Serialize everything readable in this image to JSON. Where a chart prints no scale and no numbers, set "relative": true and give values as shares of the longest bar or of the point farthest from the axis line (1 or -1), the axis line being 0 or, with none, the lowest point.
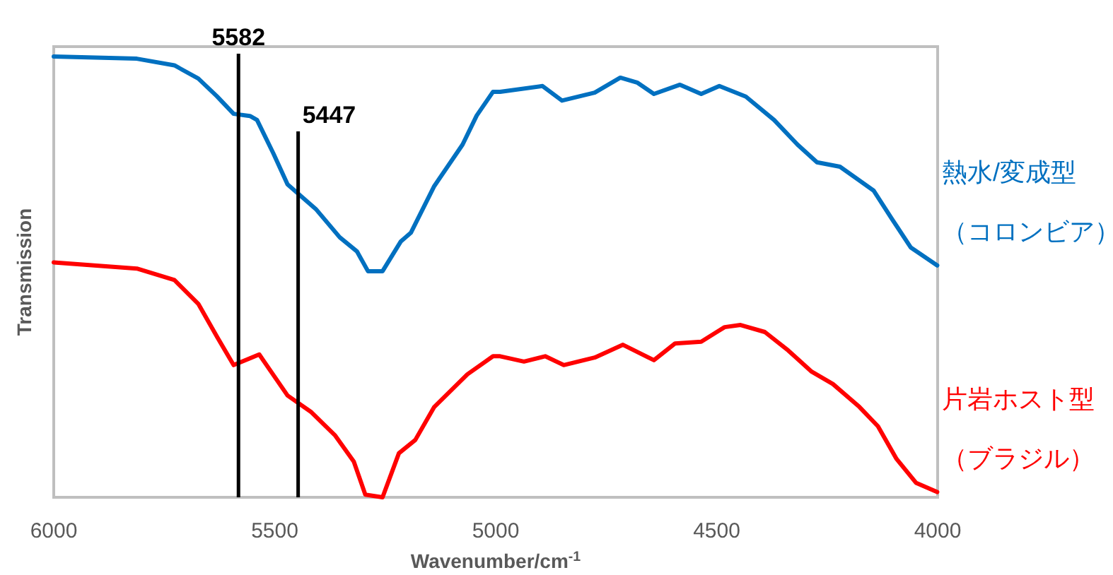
{
  "chart_data": {
    "type": "line",
    "xlabel": "Wavenumber/cm$^{-1}$",
    "ylabel": "Transmission",
    "relative": true,
    "xlim": [
      6000,
      4000
    ],
    "xticks": [
      6000,
      5500,
      5000,
      4500,
      4000
    ],
    "grid": false,
    "marker": "none",
    "line_style": "solid",
    "ref_lines": [
      {
        "axis": "x",
        "value": 5582,
        "label": "5582",
        "color": "#000000"
      },
      {
        "axis": "x",
        "value": 5447,
        "label": "5447",
        "color": "#000000"
      }
    ],
    "series": [
      {
        "name": "熱水/変成型（コロンビア）",
        "color": "#0070c0",
        "x": [
          6000,
          5812,
          5727,
          5673,
          5631,
          5593,
          5556,
          5540,
          5503,
          5471,
          5407,
          5353,
          5314,
          5289,
          5256,
          5215,
          5192,
          5139,
          5075,
          5043,
          5006,
          4990,
          4894,
          4850,
          4776,
          4718,
          4680,
          4642,
          4583,
          4535,
          4494,
          4434,
          4370,
          4317,
          4273,
          4221,
          4145,
          4103,
          4061,
          4001
        ],
        "values": [
          1.0,
          0.995,
          0.98,
          0.95,
          0.91,
          0.87,
          0.865,
          0.856,
          0.78,
          0.71,
          0.654,
          0.59,
          0.558,
          0.513,
          0.513,
          0.58,
          0.6,
          0.706,
          0.8,
          0.866,
          0.92,
          0.92,
          0.933,
          0.9,
          0.918,
          0.952,
          0.941,
          0.915,
          0.936,
          0.915,
          0.933,
          0.909,
          0.856,
          0.8,
          0.76,
          0.75,
          0.696,
          0.631,
          0.567,
          0.526
        ]
      },
      {
        "name": "片岩ホスト型（ブラジル）",
        "color": "#ff0000",
        "x": [
          6000,
          5812,
          5727,
          5673,
          5631,
          5593,
          5535,
          5471,
          5417,
          5363,
          5321,
          5295,
          5256,
          5219,
          5182,
          5139,
          5064,
          5006,
          4990,
          4936,
          4888,
          4846,
          4776,
          4712,
          4642,
          4594,
          4535,
          4482,
          4446,
          4391,
          4338,
          4285,
          4237,
          4177,
          4135,
          4093,
          4049,
          4001
        ],
        "values": [
          0.533,
          0.519,
          0.493,
          0.439,
          0.365,
          0.3,
          0.324,
          0.231,
          0.193,
          0.14,
          0.081,
          0.006,
          0.0,
          0.1,
          0.13,
          0.205,
          0.279,
          0.32,
          0.32,
          0.308,
          0.32,
          0.3,
          0.317,
          0.346,
          0.311,
          0.349,
          0.353,
          0.386,
          0.391,
          0.375,
          0.333,
          0.285,
          0.257,
          0.205,
          0.161,
          0.087,
          0.033,
          0.012
        ]
      }
    ]
  }
}
